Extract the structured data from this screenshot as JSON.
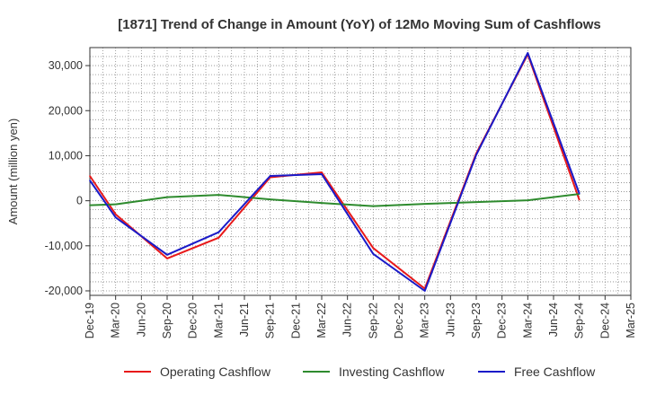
{
  "chart_data": {
    "type": "line",
    "title": "[1871]  Trend of Change in Amount (YoY) of 12Mo Moving Sum of Cashflows",
    "xlabel": "",
    "ylabel": "Amount (million yen)",
    "ylim": [
      -21000,
      34000
    ],
    "yticks": [
      -20000,
      -10000,
      0,
      10000,
      20000,
      30000
    ],
    "ytick_labels": [
      "-20,000",
      "-10,000",
      "0",
      "10,000",
      "20,000",
      "30,000"
    ],
    "categories": [
      "Dec-19",
      "Mar-20",
      "Jun-20",
      "Sep-20",
      "Dec-20",
      "Mar-21",
      "Jun-21",
      "Sep-21",
      "Dec-21",
      "Mar-22",
      "Jun-22",
      "Sep-22",
      "Dec-22",
      "Mar-23",
      "Jun-23",
      "Sep-23",
      "Dec-23",
      "Mar-24",
      "Jun-24",
      "Sep-24",
      "Dec-24",
      "Mar-25"
    ],
    "grid": true,
    "legend_position": "bottom",
    "series": [
      {
        "name": "Operating Cashflow",
        "color": "#e8191a",
        "values": [
          5500,
          -3000,
          null,
          -12800,
          null,
          -8200,
          null,
          5200,
          null,
          6300,
          null,
          -10500,
          null,
          -19500,
          null,
          10500,
          null,
          32500,
          null,
          200,
          null,
          null
        ]
      },
      {
        "name": "Investing Cashflow",
        "color": "#2e8b2e",
        "values": [
          -1000,
          -800,
          null,
          800,
          null,
          1300,
          null,
          300,
          null,
          -500,
          null,
          -1200,
          null,
          -700,
          null,
          -300,
          null,
          100,
          null,
          1500,
          null,
          null
        ]
      },
      {
        "name": "Free Cashflow",
        "color": "#1a1ac8",
        "values": [
          4500,
          -3700,
          null,
          -12000,
          null,
          -7000,
          null,
          5500,
          null,
          5900,
          null,
          -11800,
          null,
          -20000,
          null,
          10200,
          null,
          32800,
          null,
          1600,
          null,
          null
        ]
      }
    ]
  }
}
